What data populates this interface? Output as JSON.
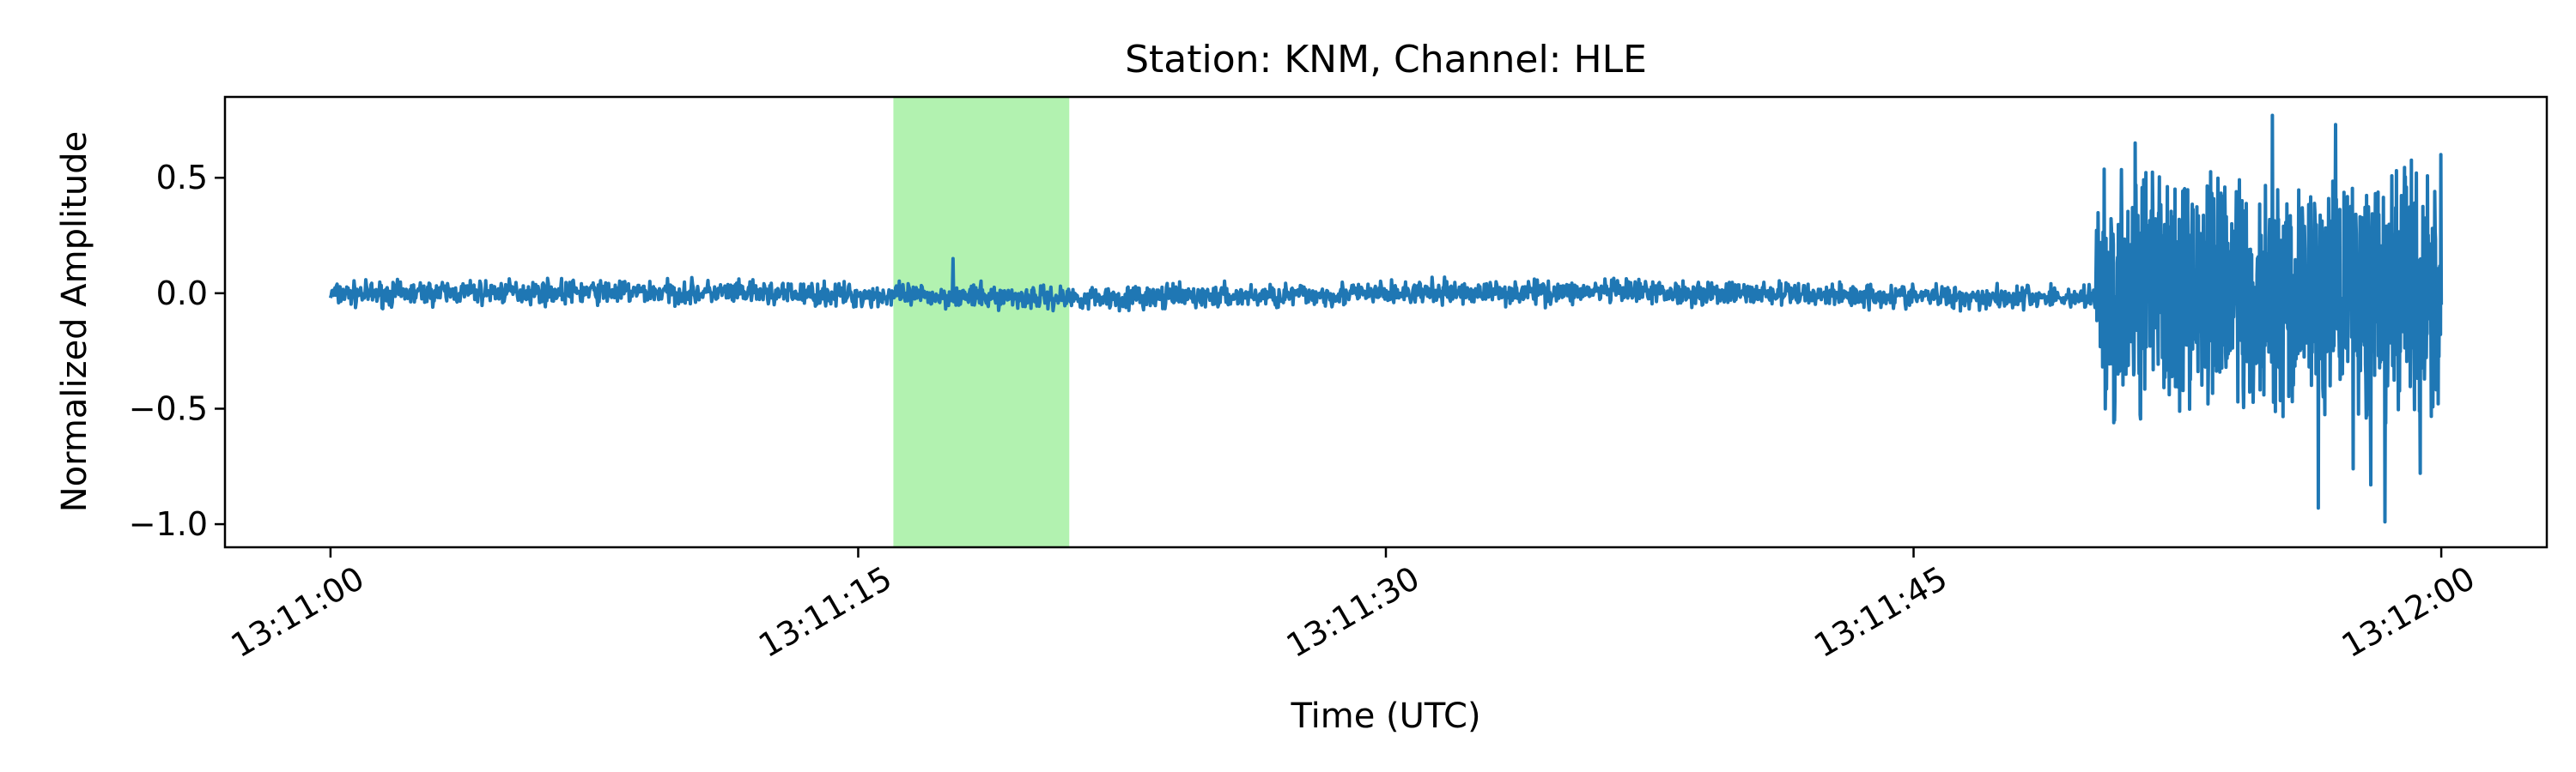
{
  "chart_data": {
    "type": "line",
    "title": "Station: KNM, Channel: HLE",
    "xlabel": "Time (UTC)",
    "ylabel": "Normalized Amplitude",
    "x_start": "13:11:00",
    "x_end": "13:12:00",
    "x_unit": "seconds after 13:11:00",
    "xlim": [
      -3,
      63
    ],
    "ylim": [
      -1.1,
      0.85
    ],
    "xticks": [
      {
        "value": 0,
        "label": "13:11:00"
      },
      {
        "value": 15,
        "label": "13:11:15"
      },
      {
        "value": 30,
        "label": "13:11:30"
      },
      {
        "value": 45,
        "label": "13:11:45"
      },
      {
        "value": 60,
        "label": "13:12:00"
      }
    ],
    "yticks": [
      {
        "value": 0.5,
        "label": "0.5"
      },
      {
        "value": 0.0,
        "label": "0.0"
      },
      {
        "value": -0.5,
        "label": "−0.5"
      },
      {
        "value": -1.0,
        "label": "−1.0"
      }
    ],
    "highlight": {
      "x_start": 16.0,
      "x_end": 21.0,
      "color": "#b2f2b0"
    },
    "grid": false,
    "series": [
      {
        "color": "#1f77b4",
        "noise_segments": [
          {
            "x_start": 0,
            "x_end": 50.2,
            "amplitude": 0.05
          },
          {
            "x_start": 50.2,
            "x_end": 60,
            "amplitude": 0.6
          }
        ],
        "peaks": [
          {
            "x": 17.7,
            "y": 0.15
          },
          {
            "x": 51.3,
            "y": 0.65
          },
          {
            "x": 55.2,
            "y": 0.77
          },
          {
            "x": 56.5,
            "y": -0.93
          },
          {
            "x": 57.0,
            "y": 0.73
          },
          {
            "x": 57.5,
            "y": -0.76
          },
          {
            "x": 58.0,
            "y": -0.83
          },
          {
            "x": 58.4,
            "y": -0.99
          },
          {
            "x": 59.4,
            "y": -0.78
          },
          {
            "x": 60.0,
            "y": 0.6
          }
        ]
      }
    ]
  }
}
